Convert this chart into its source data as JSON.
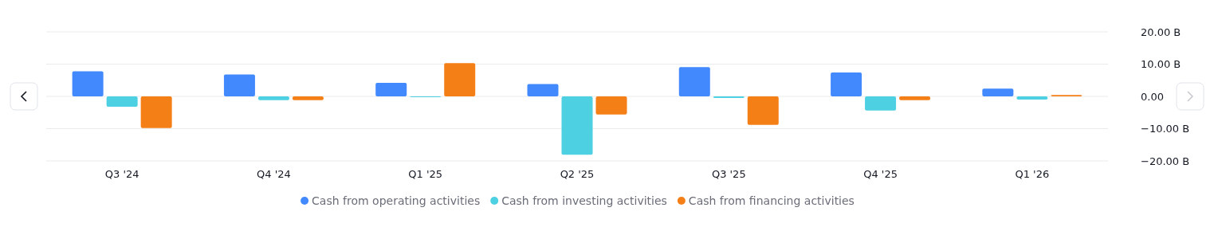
{
  "chart_data": {
    "type": "bar",
    "categories": [
      "Q3 '24",
      "Q4 '24",
      "Q1 '25",
      "Q2 '25",
      "Q3 '25",
      "Q4 '25",
      "Q1 '26"
    ],
    "series": [
      {
        "name": "Cash from operating activities",
        "color": "#4389fe",
        "values": [
          7.8,
          6.8,
          4.2,
          3.8,
          9.1,
          7.4,
          2.4
        ]
      },
      {
        "name": "Cash from investing activities",
        "color": "#4dd0e1",
        "values": [
          -3.2,
          -1.2,
          -0.2,
          -18.1,
          -0.5,
          -4.4,
          -1.0
        ]
      },
      {
        "name": "Cash from financing activities",
        "color": "#f57f17",
        "values": [
          -9.8,
          -1.2,
          10.3,
          -5.6,
          -8.8,
          -1.2,
          0.45
        ]
      }
    ],
    "ylim": [
      -20,
      20
    ],
    "yticks": [
      {
        "value": -20,
        "label": "−20.00 B"
      },
      {
        "value": -10,
        "label": "−10.00 B"
      },
      {
        "value": 0,
        "label": "0.00"
      },
      {
        "value": 10,
        "label": "10.00 B"
      },
      {
        "value": 20,
        "label": "20.00 B"
      }
    ],
    "grid": "y",
    "legend": "bottom"
  }
}
